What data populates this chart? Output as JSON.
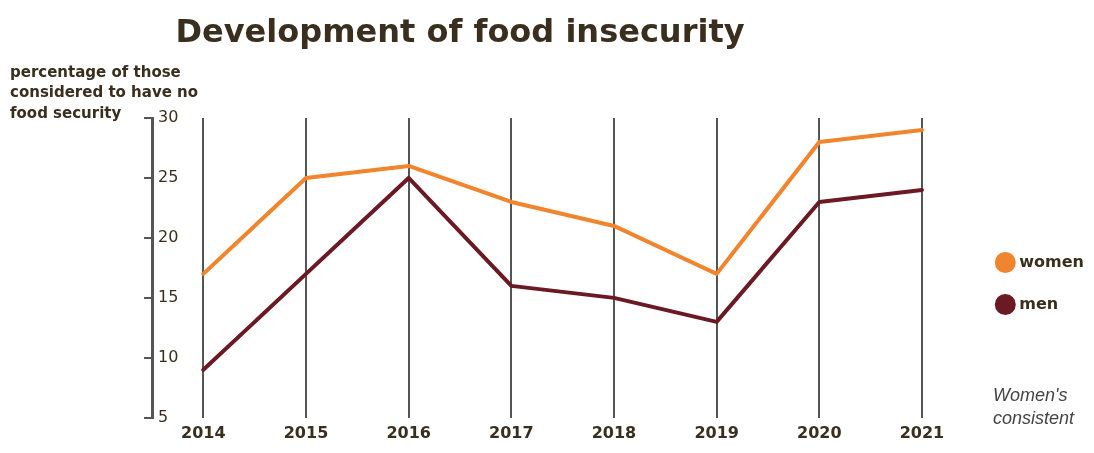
{
  "chart_data": {
    "type": "line",
    "title": "Development of food insecurity",
    "ylabel": "percentage of those considered to have no food security",
    "categories": [
      "2014",
      "2015",
      "2016",
      "2017",
      "2018",
      "2019",
      "2020",
      "2021"
    ],
    "series": [
      {
        "name": "women",
        "color": "#f0852d",
        "values": [
          17,
          25,
          26,
          23,
          21,
          17,
          28,
          29
        ]
      },
      {
        "name": "men",
        "color": "#6b1a24",
        "values": [
          9,
          17,
          25,
          16,
          15,
          13,
          23,
          24
        ]
      }
    ],
    "ylim": [
      5,
      30
    ],
    "yticks": [
      5,
      10,
      15,
      20,
      25,
      30
    ],
    "grid": "x",
    "legend": "right",
    "marker": "none",
    "line_style": "solid",
    "annotations": [
      "Women's",
      "consistent"
    ]
  }
}
